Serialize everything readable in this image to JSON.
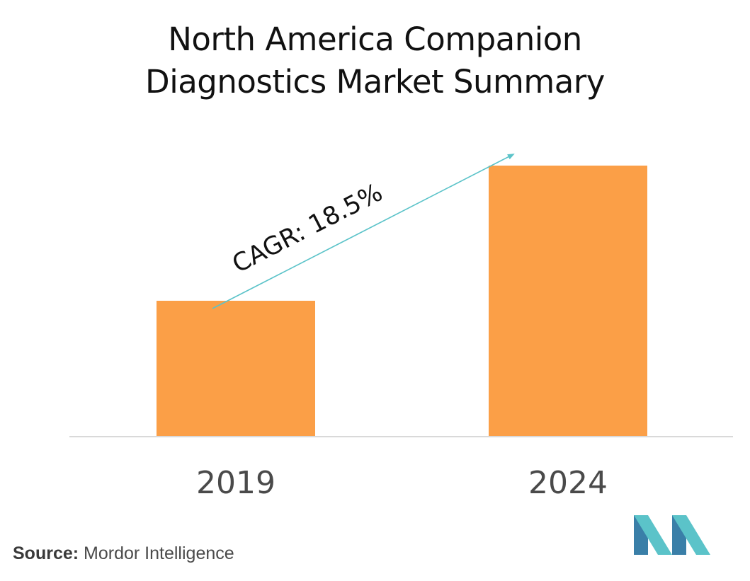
{
  "chart_data": {
    "type": "bar",
    "title_lines": [
      "North America Companion",
      "Diagnostics Market Summary"
    ],
    "categories": [
      "2019",
      "2024"
    ],
    "values": [
      0.5,
      1.0
    ],
    "ylim": [
      0,
      1.0
    ],
    "grid": false,
    "legend": "none",
    "annotation": "CAGR: 18.5%",
    "bar_color": "#fb9f47",
    "arrow_color": "#5bc3c9"
  },
  "source": {
    "label": "Source:",
    "text": "Mordor Intelligence"
  },
  "logo": {
    "icon": "mordor-intelligence-logo-icon",
    "colors": [
      "#3a7fa8",
      "#5bc3c9"
    ]
  }
}
